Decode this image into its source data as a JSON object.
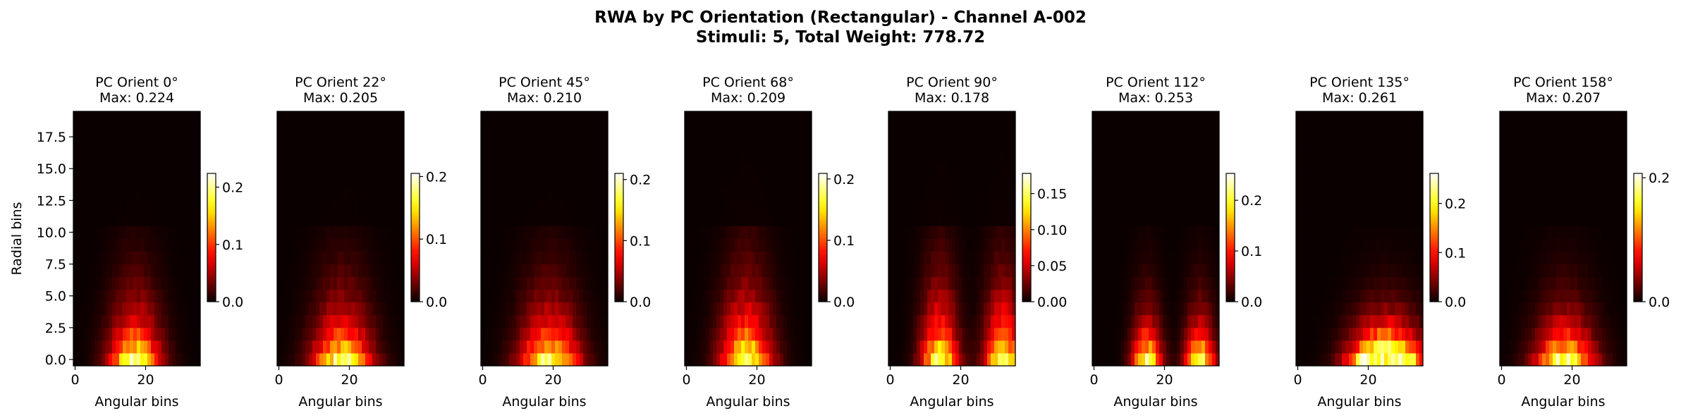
{
  "figure": {
    "title": "RWA by PC Orientation (Rectangular) - Channel A-002",
    "subtitle": "Stimuli: 5, Total Weight: 778.72"
  },
  "chart_data": [
    {
      "type": "heatmap",
      "title": "PC Orient 0°",
      "subtitle": "Max: 0.224",
      "max": 0.224,
      "xlabel": "Angular bins",
      "ylabel": "Radial bins",
      "xticks": [
        "0",
        "20"
      ],
      "yticks": [
        "0.0",
        "2.5",
        "5.0",
        "7.5",
        "10.0",
        "12.5",
        "15.0",
        "17.5"
      ],
      "cbar_ticks": [
        "0.0",
        "0.1",
        "0.2"
      ],
      "cbar_values": [
        0,
        0.1,
        0.2
      ],
      "colormap": "hot",
      "peaks": [
        17
      ],
      "spread": 7,
      "depth": 5
    },
    {
      "type": "heatmap",
      "title": "PC Orient 22°",
      "subtitle": "Max: 0.205",
      "max": 0.205,
      "xlabel": "Angular bins",
      "ylabel": "",
      "xticks": [
        "0",
        "20"
      ],
      "yticks": [],
      "cbar_ticks": [
        "0.0",
        "0.1",
        "0.2"
      ],
      "cbar_values": [
        0,
        0.1,
        0.2
      ],
      "colormap": "hot",
      "peaks": [
        18
      ],
      "spread": 8,
      "depth": 5
    },
    {
      "type": "heatmap",
      "title": "PC Orient 45°",
      "subtitle": "Max: 0.210",
      "max": 0.21,
      "xlabel": "Angular bins",
      "ylabel": "",
      "xticks": [
        "0",
        "20"
      ],
      "yticks": [],
      "cbar_ticks": [
        "0.0",
        "0.1",
        "0.2"
      ],
      "cbar_values": [
        0,
        0.1,
        0.2
      ],
      "colormap": "hot",
      "peaks": [
        19
      ],
      "spread": 8,
      "depth": 5
    },
    {
      "type": "heatmap",
      "title": "PC Orient 68°",
      "subtitle": "Max: 0.209",
      "max": 0.209,
      "xlabel": "Angular bins",
      "ylabel": "",
      "xticks": [
        "0",
        "20"
      ],
      "yticks": [],
      "cbar_ticks": [
        "0.0",
        "0.1",
        "0.2"
      ],
      "cbar_values": [
        0,
        0.1,
        0.2
      ],
      "colormap": "hot",
      "peaks": [
        17
      ],
      "spread": 7,
      "depth": 6
    },
    {
      "type": "heatmap",
      "title": "PC Orient 90°",
      "subtitle": "Max: 0.178",
      "max": 0.178,
      "xlabel": "Angular bins",
      "ylabel": "",
      "xticks": [
        "0",
        "20"
      ],
      "yticks": [],
      "cbar_ticks": [
        "0.00",
        "0.05",
        "0.10",
        "0.15"
      ],
      "cbar_values": [
        0,
        0.05,
        0.1,
        0.15
      ],
      "colormap": "hot",
      "peaks": [
        14,
        32
      ],
      "spread": 5,
      "depth": 6
    },
    {
      "type": "heatmap",
      "title": "PC Orient 112°",
      "subtitle": "Max: 0.253",
      "max": 0.253,
      "xlabel": "Angular bins",
      "ylabel": "",
      "xticks": [
        "0",
        "20"
      ],
      "yticks": [],
      "cbar_ticks": [
        "0.0",
        "0.1",
        "0.2"
      ],
      "cbar_values": [
        0,
        0.1,
        0.2
      ],
      "colormap": "hot",
      "peaks": [
        15,
        30
      ],
      "spread": 4,
      "depth": 4
    },
    {
      "type": "heatmap",
      "title": "PC Orient 135°",
      "subtitle": "Max: 0.261",
      "max": 0.261,
      "xlabel": "Angular bins",
      "ylabel": "",
      "xticks": [
        "0",
        "20"
      ],
      "yticks": [],
      "cbar_ticks": [
        "0.0",
        "0.1",
        "0.2"
      ],
      "cbar_values": [
        0,
        0.1,
        0.2
      ],
      "colormap": "hot",
      "peaks": [
        22,
        28
      ],
      "spread": 8,
      "depth": 3
    },
    {
      "type": "heatmap",
      "title": "PC Orient 158°",
      "subtitle": "Max: 0.207",
      "max": 0.207,
      "xlabel": "Angular bins",
      "ylabel": "",
      "xticks": [
        "0",
        "20"
      ],
      "yticks": [],
      "cbar_ticks": [
        "0.0",
        "0.2"
      ],
      "cbar_values": [
        0,
        0.2
      ],
      "colormap": "hot",
      "peaks": [
        18
      ],
      "spread": 8,
      "depth": 4
    }
  ]
}
